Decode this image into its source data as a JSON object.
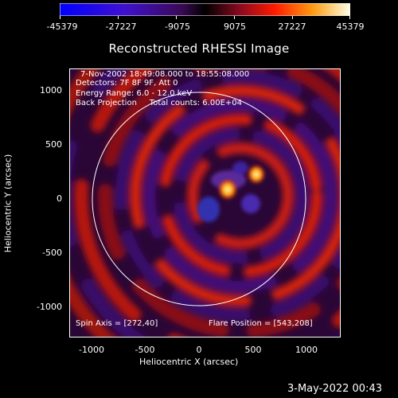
{
  "colorbar": {
    "ticks": [
      "-45379",
      "-27227",
      "-9075",
      "9075",
      "27227",
      "45379"
    ]
  },
  "title": "Reconstructed RHESSI Image",
  "annotations": {
    "time_range": "7-Nov-2002 18:49:08.000 to 18:55:08.000",
    "detectors": "Detectors: 7F 8F 9F, Att 0",
    "energy_range": "Energy Range: 6.0 - 12.0 keV",
    "method_counts": "Back Projection     Total counts: 6.00E+04",
    "spin_axis": "Spin Axis = [272,40]",
    "flare_position": "Flare Position = [543,208]"
  },
  "axes": {
    "xlabel": "Heliocentric X (arcsec)",
    "ylabel": "Heliocentric Y (arcsec)",
    "xticks": [
      "-1000",
      "-500",
      "0",
      "500",
      "1000"
    ],
    "yticks": [
      "1000",
      "500",
      "0",
      "-500",
      "-1000"
    ]
  },
  "footer_date": "3-May-2022 00:43",
  "colors": {
    "background": "#000000",
    "negative": "#3a0a78",
    "positive": "#d81e10",
    "peak": "#ffff60",
    "limb_circle": "#ffffff"
  }
}
